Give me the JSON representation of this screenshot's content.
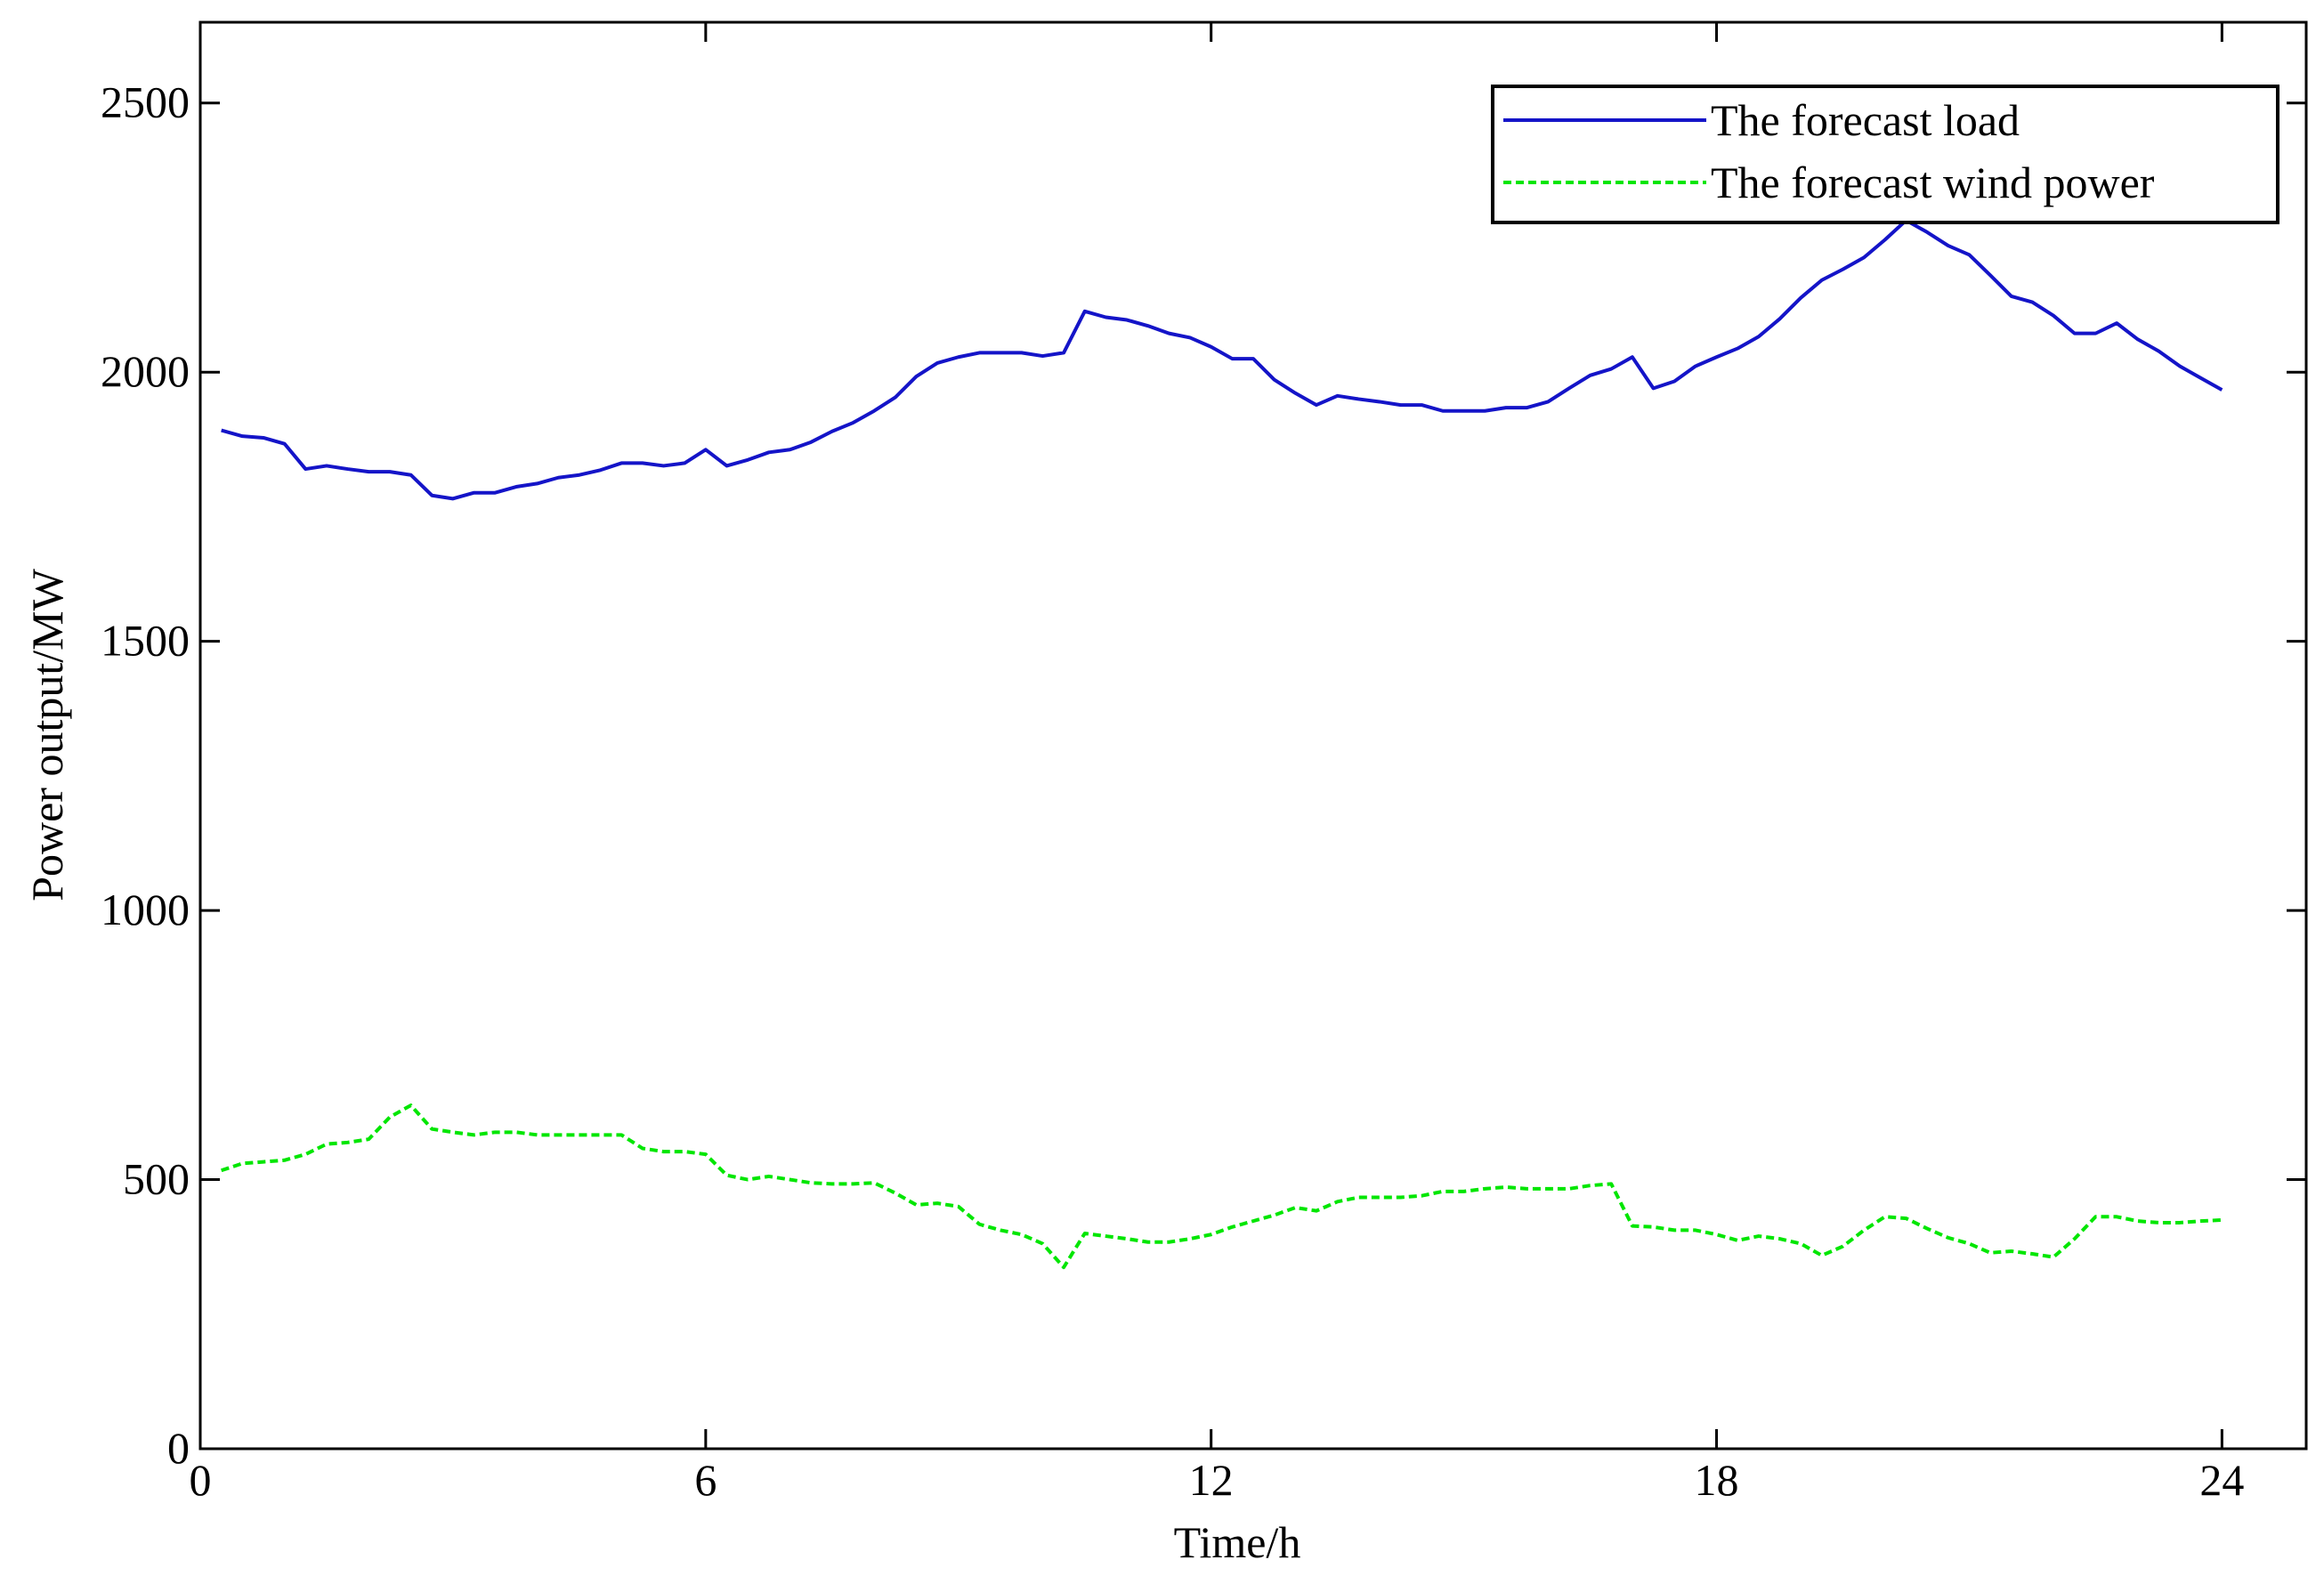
{
  "chart_data": {
    "type": "line",
    "xlabel": "Time/h",
    "ylabel": "Power output/MW",
    "x": [
      0.25,
      0.5,
      0.75,
      1,
      1.25,
      1.5,
      1.75,
      2,
      2.25,
      2.5,
      2.75,
      3,
      3.25,
      3.5,
      3.75,
      4,
      4.25,
      4.5,
      4.75,
      5,
      5.25,
      5.5,
      5.75,
      6,
      6.25,
      6.5,
      6.75,
      7,
      7.25,
      7.5,
      7.75,
      8,
      8.25,
      8.5,
      8.75,
      9,
      9.25,
      9.5,
      9.75,
      10,
      10.25,
      10.5,
      10.75,
      11,
      11.25,
      11.5,
      11.75,
      12,
      12.25,
      12.5,
      12.75,
      13,
      13.25,
      13.5,
      13.75,
      14,
      14.25,
      14.5,
      14.75,
      15,
      15.25,
      15.5,
      15.75,
      16,
      16.25,
      16.5,
      16.75,
      17,
      17.25,
      17.5,
      17.75,
      18,
      18.25,
      18.5,
      18.75,
      19,
      19.25,
      19.5,
      19.75,
      20,
      20.25,
      20.5,
      20.75,
      21,
      21.25,
      21.5,
      21.75,
      22,
      22.25,
      22.5,
      22.75,
      23,
      23.25,
      23.5,
      23.75,
      24
    ],
    "series": [
      {
        "name": "The forecast load",
        "color": "#1414c8",
        "dash": false,
        "values": [
          1892,
          1881,
          1878,
          1867,
          1820,
          1826,
          1820,
          1815,
          1815,
          1809,
          1771,
          1765,
          1776,
          1776,
          1787,
          1793,
          1804,
          1809,
          1818,
          1831,
          1831,
          1826,
          1831,
          1856,
          1826,
          1837,
          1851,
          1856,
          1870,
          1890,
          1906,
          1928,
          1953,
          1992,
          2017,
          2028,
          2036,
          2036,
          2036,
          2030,
          2036,
          2113,
          2102,
          2097,
          2086,
          2072,
          2064,
          2047,
          2025,
          2025,
          1986,
          1961,
          1939,
          1956,
          1950,
          1945,
          1939,
          1939,
          1928,
          1928,
          1928,
          1934,
          1934,
          1945,
          1970,
          1994,
          2006,
          2028,
          1970,
          1983,
          2011,
          2028,
          2044,
          2066,
          2099,
          2138,
          2171,
          2191,
          2213,
          2246,
          2282,
          2260,
          2235,
          2218,
          2180,
          2141,
          2130,
          2105,
          2072,
          2072,
          2091,
          2061,
          2039,
          2011,
          1989,
          1967
        ]
      },
      {
        "name": "The forecast wind power",
        "color": "#00e600",
        "dash": true,
        "values": [
          517,
          530,
          533,
          536,
          547,
          566,
          569,
          575,
          616,
          638,
          594,
          588,
          583,
          588,
          588,
          583,
          583,
          583,
          583,
          583,
          558,
          552,
          552,
          547,
          508,
          500,
          506,
          500,
          494,
          492,
          492,
          494,
          475,
          453,
          456,
          450,
          417,
          406,
          398,
          381,
          337,
          400,
          395,
          390,
          384,
          384,
          390,
          398,
          412,
          423,
          434,
          448,
          442,
          459,
          467,
          467,
          467,
          470,
          478,
          478,
          483,
          486,
          483,
          483,
          483,
          489,
          492,
          414,
          412,
          406,
          406,
          398,
          387,
          395,
          390,
          381,
          359,
          376,
          406,
          431,
          428,
          409,
          392,
          381,
          364,
          367,
          362,
          356,
          390,
          431,
          431,
          423,
          420,
          420,
          423,
          425
        ]
      }
    ],
    "xlim": [
      0,
      25
    ],
    "ylim": [
      0,
      2650
    ],
    "xticks": [
      0,
      6,
      12,
      18,
      24
    ],
    "yticks": [
      0,
      500,
      1000,
      1500,
      2000,
      2500
    ],
    "grid": false,
    "legend": "upper right"
  }
}
